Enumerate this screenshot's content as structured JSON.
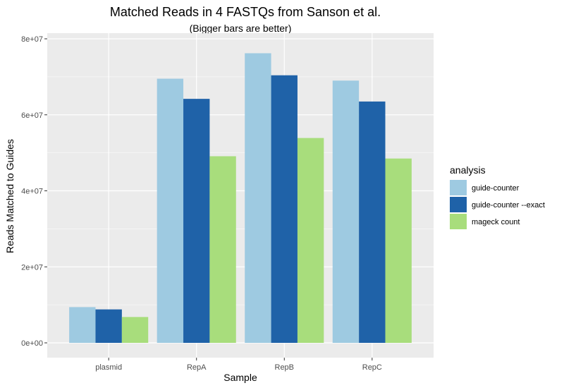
{
  "chart_data": {
    "type": "bar",
    "title": "Matched Reads in 4 FASTQs from Sanson et al.",
    "subtitle": "(Bigger bars are better)",
    "xlabel": "Sample",
    "ylabel": "Reads Matched to Guides",
    "categories": [
      "plasmid",
      "RepA",
      "RepB",
      "RepC"
    ],
    "ylim": [
      0,
      80000000
    ],
    "yticks": [
      0,
      20000000,
      40000000,
      60000000,
      80000000
    ],
    "ytick_labels": [
      "0e+00",
      "2e+07",
      "4e+07",
      "6e+07",
      "8e+07"
    ],
    "grid": true,
    "legend_title": "analysis",
    "legend_position": "right",
    "series": [
      {
        "name": "guide-counter",
        "color": "#9ECAE1",
        "values": [
          9400000,
          69500000,
          76200000,
          69000000
        ]
      },
      {
        "name": "guide-counter --exact",
        "color": "#1F62A8",
        "values": [
          8800000,
          64200000,
          70400000,
          63500000
        ]
      },
      {
        "name": "mageck count",
        "color": "#A8DD7C",
        "values": [
          6800000,
          49100000,
          53900000,
          48500000
        ]
      }
    ]
  }
}
